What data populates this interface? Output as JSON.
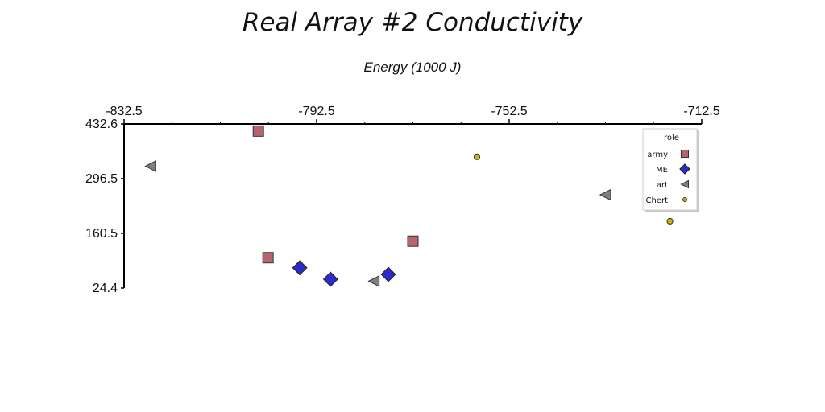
{
  "chart_data": {
    "type": "scatter",
    "title": "Real Array #2 Conductivity",
    "xlabel": "Energy (1000 J)",
    "ylabel": "",
    "xlim": [
      -832.5,
      -712.5
    ],
    "ylim": [
      24.4,
      432.6
    ],
    "x_ticks": [
      "-832.5",
      "-792.5",
      "-752.5",
      "-712.5"
    ],
    "y_ticks": [
      "432.6",
      "296.5",
      "160.5",
      "24.4"
    ],
    "legend": {
      "title": "role",
      "placement": "top-right"
    },
    "series": [
      {
        "name": "army",
        "marker": "square",
        "color": "#b8646e",
        "points": [
          [
            -804.6,
            414.9
          ],
          [
            -802.6,
            100.0
          ],
          [
            -772.5,
            141.0
          ]
        ]
      },
      {
        "name": "ME",
        "marker": "diamond",
        "color": "#2b2bcc",
        "points": [
          [
            -796.0,
            74.8
          ],
          [
            -789.6,
            46.5
          ],
          [
            -777.6,
            58.5
          ]
        ]
      },
      {
        "name": "art",
        "marker": "triangle-left",
        "color": "#808080",
        "points": [
          [
            -827.0,
            327.7
          ],
          [
            -780.6,
            41.7
          ],
          [
            -732.5,
            256.3
          ]
        ]
      },
      {
        "name": "Chert",
        "marker": "circle",
        "color": "#d4b200",
        "points": [
          [
            -759.2,
            351.0
          ],
          [
            -719.1,
            190.6
          ]
        ]
      }
    ]
  }
}
